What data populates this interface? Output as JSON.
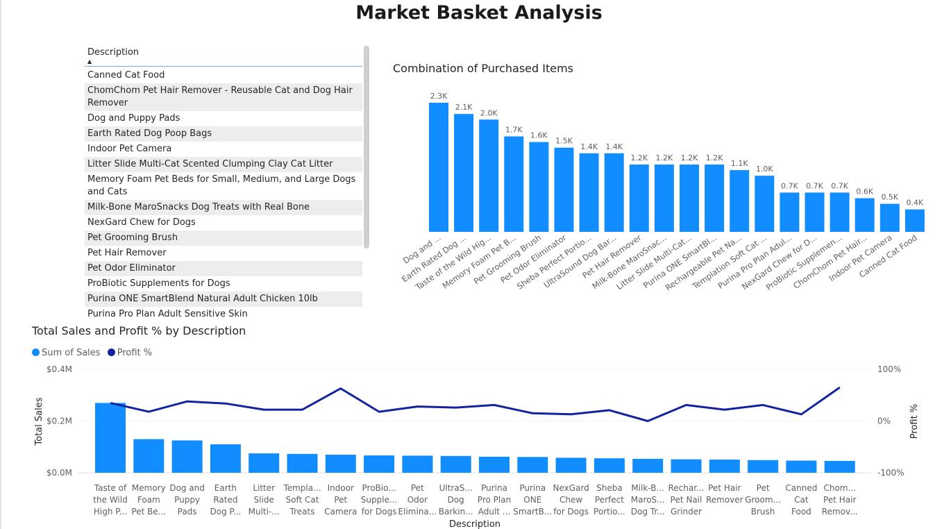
{
  "page": {
    "title": "Market Basket Analysis"
  },
  "slicer": {
    "header": "Description",
    "sort_icon": "▲",
    "items": [
      "Canned Cat Food",
      "ChomChom Pet Hair Remover - Reusable Cat and Dog Hair Remover",
      "Dog and Puppy Pads",
      "Earth Rated Dog Poop Bags",
      "Indoor Pet Camera",
      "Litter Slide Multi-Cat Scented Clumping Clay Cat Litter",
      "Memory Foam Pet Beds for Small, Medium, and Large Dogs and Cats",
      "Milk-Bone MaroSnacks Dog Treats with Real Bone",
      "NexGard Chew for Dogs",
      "Pet Grooming Brush",
      "Pet Hair Remover",
      "Pet Odor Eliminator",
      "ProBiotic Supplements for Dogs",
      "Purina ONE SmartBlend Natural Adult Chicken 10lb",
      "Purina Pro Plan Adult Sensitive Skin"
    ]
  },
  "chart_data": [
    {
      "type": "bar",
      "title": "Combination of Purchased Items",
      "categories": [
        "Dog and ...",
        "Earth Rated Dog ...",
        "Taste of the Wild Hig...",
        "Memory Foam Pet B...",
        "Pet Grooming Brush",
        "Pet Odor Eliminator",
        "Sheba Perfect Portio...",
        "UltraSound Dog Bar...",
        "Pet Hair Remover",
        "Milk-Bone MaroSnac...",
        "Litter Slide Multi-Cat...",
        "Purina ONE SmartBl...",
        "Rechargeable Pet Na...",
        "Templation Soft Cat ...",
        "Purina Pro Plan Adul...",
        "NexGard Chew for D...",
        "ProBiotic Supplemen...",
        "ChomChom Pet Hair...",
        "Indoor Pet Camera",
        "Canned Cat Food"
      ],
      "values": [
        2300,
        2100,
        2000,
        1700,
        1600,
        1500,
        1400,
        1400,
        1200,
        1200,
        1200,
        1200,
        1100,
        1000,
        700,
        700,
        700,
        600,
        500,
        400
      ],
      "data_labels": [
        "2.3K",
        "2.1K",
        "2.0K",
        "1.7K",
        "1.6K",
        "1.5K",
        "1.4K",
        "1.4K",
        "1.2K",
        "1.2K",
        "1.2K",
        "1.2K",
        "1.1K",
        "1.0K",
        "0.7K",
        "0.7K",
        "0.7K",
        "0.6K",
        "0.5K",
        "0.4K"
      ],
      "ylim": [
        0,
        2300
      ],
      "color": "#118dff",
      "grid": false
    },
    {
      "type": "bar-line",
      "title": "Total Sales and Profit % by Description",
      "xlabel": "Description",
      "ylabel": "Total Sales",
      "y2label": "Profit %",
      "legend_position": "top-left",
      "categories": [
        [
          "Taste of",
          "the Wild",
          "High P..."
        ],
        [
          "Memory",
          "Foam",
          "Pet Be..."
        ],
        [
          "Dog and",
          "Puppy",
          "Pads"
        ],
        [
          "Earth",
          "Rated",
          "Dog P..."
        ],
        [
          "Litter",
          "Slide",
          "Multi-..."
        ],
        [
          "Templa...",
          "Soft Cat",
          "Treats"
        ],
        [
          "Indoor",
          "Pet",
          "Camera"
        ],
        [
          "ProBio...",
          "Supple...",
          "for Dogs"
        ],
        [
          "Pet",
          "Odor",
          "Elimina..."
        ],
        [
          "UltraS...",
          "Dog",
          "Barkin..."
        ],
        [
          "Purina",
          "Pro Plan",
          "Adult ..."
        ],
        [
          "Purina",
          "ONE",
          "SmartB..."
        ],
        [
          "NexGard",
          "Chew",
          "for Dogs"
        ],
        [
          "Sheba",
          "Perfect",
          "Portio..."
        ],
        [
          "Milk-B...",
          "MaroS...",
          "Dog Tr..."
        ],
        [
          "Rechar...",
          "Pet Nail",
          "Grinder"
        ],
        [
          "Pet Hair",
          "Remover"
        ],
        [
          "Pet",
          "Groom...",
          "Brush"
        ],
        [
          "Canned",
          "Cat",
          "Food"
        ],
        [
          "Chom...",
          "Pet Hair",
          "Remov..."
        ]
      ],
      "series": [
        {
          "name": "Sum of Sales",
          "axis": "left",
          "color": "#118dff",
          "values": [
            0.27,
            0.13,
            0.125,
            0.11,
            0.075,
            0.073,
            0.07,
            0.067,
            0.066,
            0.065,
            0.062,
            0.061,
            0.058,
            0.056,
            0.054,
            0.052,
            0.051,
            0.049,
            0.047,
            0.046
          ]
        },
        {
          "name": "Profit %",
          "axis": "right",
          "color": "#12239e",
          "values": [
            35,
            18,
            38,
            34,
            22,
            22,
            63,
            18,
            28,
            26,
            31,
            15,
            13,
            21,
            0,
            31,
            22,
            31,
            13,
            65
          ]
        }
      ],
      "y_ticks": [
        "$0.0M",
        "$0.2M",
        "$0.4M"
      ],
      "ylim": [
        0,
        0.4
      ],
      "y2_ticks": [
        "-100%",
        "0%",
        "100%"
      ],
      "y2lim": [
        -100,
        100
      ]
    }
  ]
}
